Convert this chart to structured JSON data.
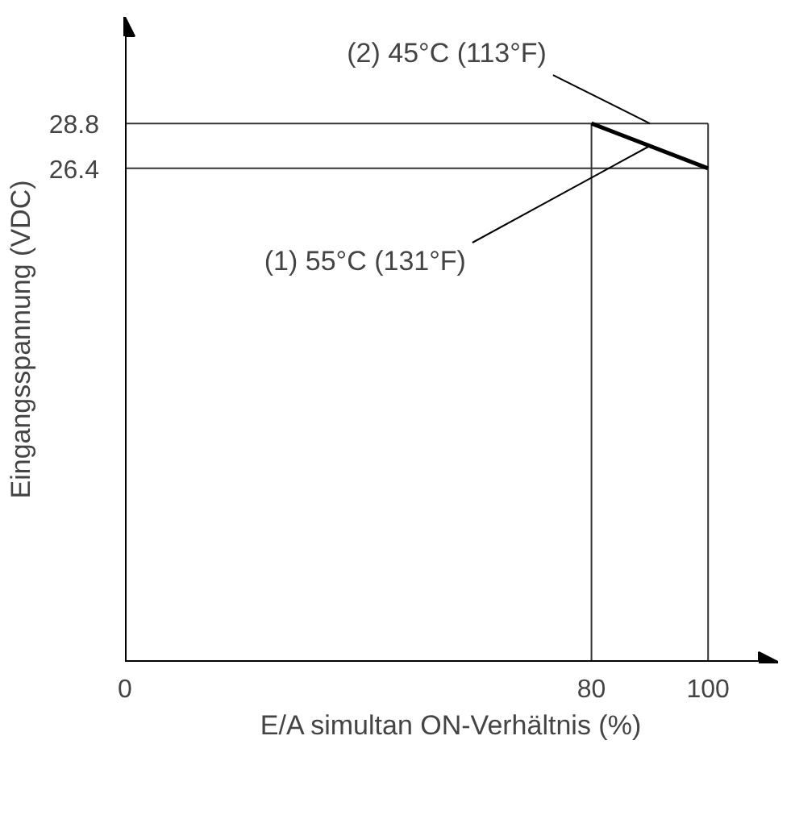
{
  "chart_data": {
    "type": "line",
    "xlabel": "E/A simultan ON-Verhältnis (%)",
    "ylabel": "Eingangsspannung (VDC)",
    "x": [
      80,
      100
    ],
    "series": [
      {
        "color": "#000000",
        "values": [
          28.8,
          26.4
        ]
      }
    ],
    "xlim": [
      0,
      112
    ],
    "ylim": [
      0,
      34.5
    ],
    "xticks": [
      0,
      80,
      100
    ],
    "yticks": [
      26.4,
      28.8
    ],
    "ref_lines": [
      {
        "axis": "y",
        "value": 28.8,
        "color": "#333333"
      },
      {
        "axis": "y",
        "value": 26.4,
        "color": "#333333"
      },
      {
        "axis": "x",
        "value": 80,
        "color": "#333333"
      },
      {
        "axis": "x",
        "value": 100,
        "color": "#333333"
      }
    ],
    "annotations": [
      {
        "text": "(2) 45°C (113°F)",
        "x": 90,
        "y": 28.8
      },
      {
        "text": "(1) 55°C (131°F)",
        "x": 90,
        "y": 27.6
      }
    ],
    "grid": false
  }
}
